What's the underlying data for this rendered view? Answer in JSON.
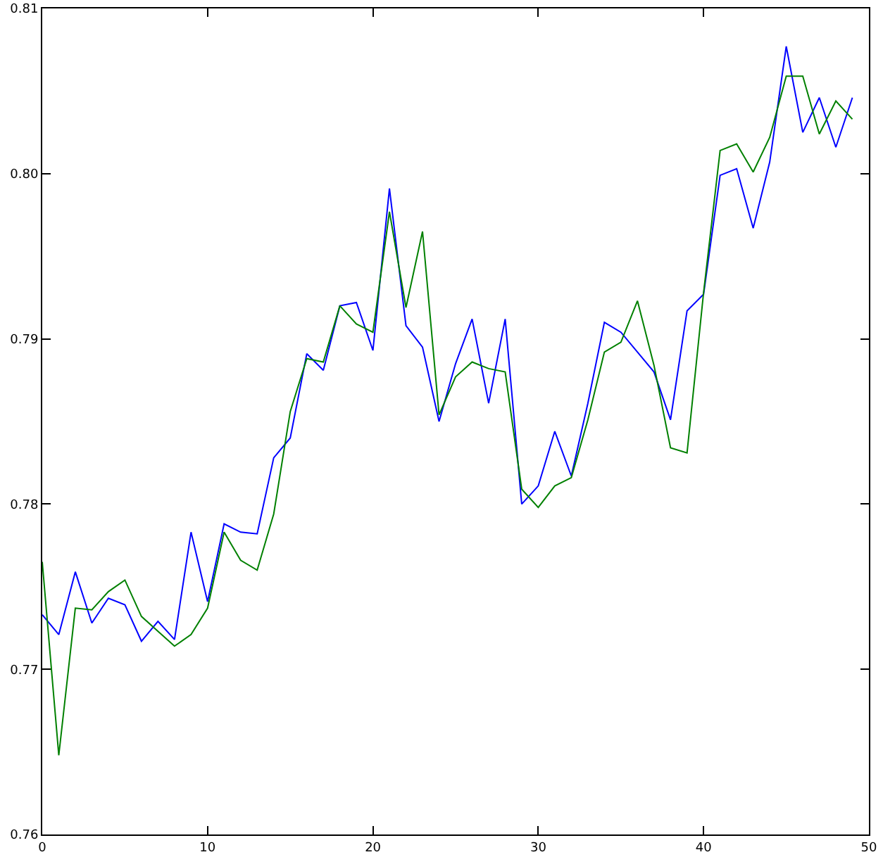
{
  "chart_data": {
    "type": "line",
    "x": [
      0,
      1,
      2,
      3,
      4,
      5,
      6,
      7,
      8,
      9,
      10,
      11,
      12,
      13,
      14,
      15,
      16,
      17,
      18,
      19,
      20,
      21,
      22,
      23,
      24,
      25,
      26,
      27,
      28,
      29,
      30,
      31,
      32,
      33,
      34,
      35,
      36,
      37,
      38,
      39,
      40,
      41,
      42,
      43,
      44,
      45,
      46,
      47,
      48,
      49
    ],
    "series": [
      {
        "color": "#0000ff",
        "values": [
          0.7733,
          0.7721,
          0.7759,
          0.7728,
          0.7743,
          0.7739,
          0.7717,
          0.7729,
          0.7718,
          0.7783,
          0.7741,
          0.7788,
          0.7783,
          0.7782,
          0.7828,
          0.784,
          0.7891,
          0.7881,
          0.792,
          0.7922,
          0.7893,
          0.7991,
          0.7908,
          0.7895,
          0.785,
          0.7885,
          0.7912,
          0.7861,
          0.7912,
          0.78,
          0.7811,
          0.7844,
          0.7817,
          0.7861,
          0.791,
          0.7904,
          0.7892,
          0.788,
          0.7851,
          0.7917,
          0.7927,
          0.7999,
          0.8003,
          0.7967,
          0.8007,
          0.8077,
          0.8025,
          0.8046,
          0.8016,
          0.8046
        ]
      },
      {
        "color": "#008000",
        "values": [
          0.7765,
          0.7648,
          0.7737,
          0.7736,
          0.7747,
          0.7754,
          0.7732,
          0.7723,
          0.7714,
          0.7721,
          0.7737,
          0.7783,
          0.7766,
          0.776,
          0.7794,
          0.7856,
          0.7888,
          0.7886,
          0.792,
          0.7909,
          0.7904,
          0.7977,
          0.7919,
          0.7965,
          0.7854,
          0.7877,
          0.7886,
          0.7882,
          0.788,
          0.7809,
          0.7798,
          0.7811,
          0.7816,
          0.7851,
          0.7892,
          0.7898,
          0.7923,
          0.7884,
          0.7834,
          0.7831,
          0.7928,
          0.8014,
          0.8018,
          0.8001,
          0.8022,
          0.8059,
          0.8059,
          0.8024,
          0.8044,
          0.8033
        ]
      }
    ],
    "xlim": [
      0,
      50
    ],
    "xticks": [
      0,
      10,
      20,
      30,
      40,
      50
    ],
    "ylim": [
      0.76,
      0.81
    ],
    "yticks": [
      0.76,
      0.77,
      0.78,
      0.79,
      {
        "value": 0.8,
        "label": "0.80"
      },
      0.81
    ],
    "grid": false,
    "marker": "none",
    "line_style": "solid"
  }
}
